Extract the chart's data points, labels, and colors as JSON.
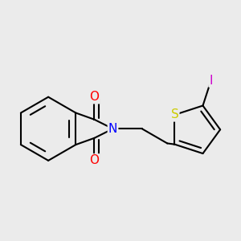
{
  "background_color": "#ebebeb",
  "bond_color": "#000000",
  "atom_colors": {
    "N": "#0000ff",
    "O": "#ff0000",
    "S": "#cccc00",
    "I": "#cc00cc",
    "C": "#000000"
  },
  "line_width": 1.5,
  "font_size": 11,
  "fig_size": [
    3.0,
    3.0
  ],
  "dpi": 100
}
